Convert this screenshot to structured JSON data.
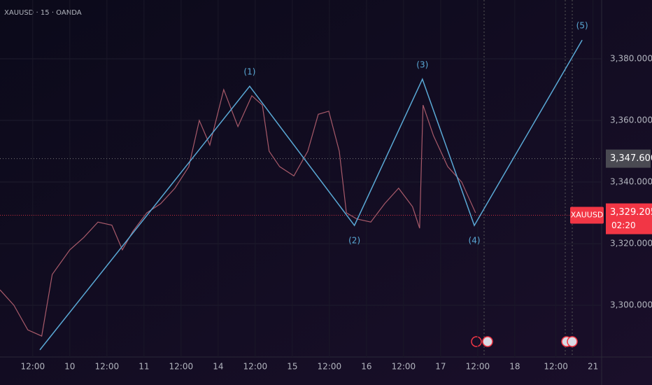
{
  "chart_data": {
    "type": "line",
    "title": "XAUUSD · 15 · OANDA",
    "xlim": [
      1.4,
      196.1
    ],
    "xticks": [
      {
        "value": 12,
        "label": "12:00"
      },
      {
        "value": 24,
        "label": "10"
      },
      {
        "value": 36,
        "label": "12:00"
      },
      {
        "value": 48,
        "label": "11"
      },
      {
        "value": 60,
        "label": "12:00"
      },
      {
        "value": 72,
        "label": "14"
      },
      {
        "value": 84,
        "label": "12:00"
      },
      {
        "value": 96,
        "label": "15"
      },
      {
        "value": 108,
        "label": "12:00"
      },
      {
        "value": 120,
        "label": "16"
      },
      {
        "value": 132,
        "label": "12:00"
      },
      {
        "value": 144,
        "label": "17"
      },
      {
        "value": 156,
        "label": "12:00"
      },
      {
        "value": 168,
        "label": "18"
      },
      {
        "value": 181.3,
        "label": "12:00"
      },
      {
        "value": 193.3,
        "label": "21"
      }
    ],
    "ylim": [
      3283.2,
      3399.1
    ],
    "yticks": [
      {
        "value": 3300,
        "label": "3,300.000"
      },
      {
        "value": 3320,
        "label": "3,320.000"
      },
      {
        "value": 3340,
        "label": "3,340.000"
      },
      {
        "value": 3360,
        "label": "3,360.000"
      },
      {
        "value": 3380,
        "label": "3,380.000"
      }
    ],
    "grid": true,
    "series": [
      {
        "color": "#a85a6a",
        "x": [
          1.4,
          5.9,
          10.4,
          14.9,
          18.3,
          24.0,
          28.5,
          33.1,
          37.6,
          41.0,
          44.4,
          48.9,
          53.4,
          58.0,
          62.5,
          65.9,
          69.3,
          73.8,
          78.4,
          82.9,
          86.3,
          88.5,
          91.9,
          96.5,
          101.0,
          104.4,
          107.8,
          111.2,
          113.5,
          116.9,
          121.4,
          125.9,
          130.4,
          134.9,
          137.2,
          138.3,
          141.7,
          146.3,
          150.8,
          155.3
        ],
        "values": [
          3305,
          3300,
          3292,
          3290,
          3310,
          3318,
          3322,
          3327,
          3326,
          3318,
          3324,
          3330,
          3333,
          3338,
          3345,
          3360,
          3352,
          3370,
          3358,
          3368,
          3365,
          3350,
          3345,
          3342,
          3350,
          3362,
          3363,
          3350,
          3330,
          3328,
          3327,
          3333,
          3338,
          3332,
          3325,
          3365,
          3355,
          3345,
          3340,
          3330
        ]
      },
      {
        "color": "#5aa9d6",
        "x": [
          14.3,
          82.2,
          116.1,
          138.1,
          154.9,
          189.8
        ],
        "values": [
          3285.5,
          3371.1,
          3325.9,
          3373.4,
          3325.9,
          3386.1
        ],
        "point_labels": [
          null,
          "(1)",
          "(2)",
          "(3)",
          "(4)",
          "(5)"
        ]
      }
    ],
    "price_line": {
      "value": 3347.6,
      "label": "3,347.600"
    },
    "current_price": {
      "symbol": "XAUUSD",
      "value": 3329.205,
      "label": "3,329.205",
      "countdown": "02:20",
      "color": "#f23645"
    }
  }
}
